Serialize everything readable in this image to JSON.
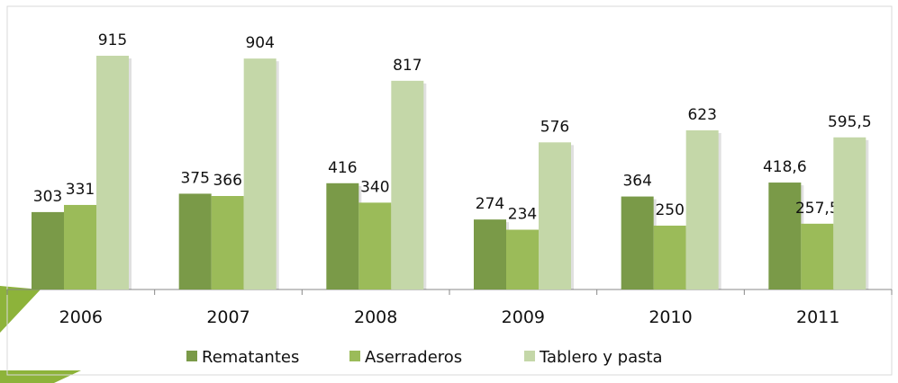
{
  "chart_data": {
    "type": "bar",
    "categories": [
      "2006",
      "2007",
      "2008",
      "2009",
      "2010",
      "2011"
    ],
    "series": [
      {
        "name": "Rematantes",
        "color": "#7a9a48",
        "values": [
          303,
          375,
          416,
          274,
          364,
          418.6
        ],
        "value_labels": [
          "303",
          "375",
          "416",
          "274",
          "364",
          "418,6"
        ]
      },
      {
        "name": "Aserraderos",
        "color": "#9bbb59",
        "values": [
          331,
          366,
          340,
          234,
          250,
          257.5
        ],
        "value_labels": [
          "331",
          "366",
          "340",
          "234",
          "250",
          "257,5"
        ]
      },
      {
        "name": "Tablero y pasta",
        "color": "#c4d7a8",
        "values": [
          915,
          904,
          817,
          576,
          623,
          595.5
        ],
        "value_labels": [
          "915",
          "904",
          "817",
          "576",
          "623",
          "595,5"
        ]
      }
    ],
    "legend": "bottom"
  }
}
